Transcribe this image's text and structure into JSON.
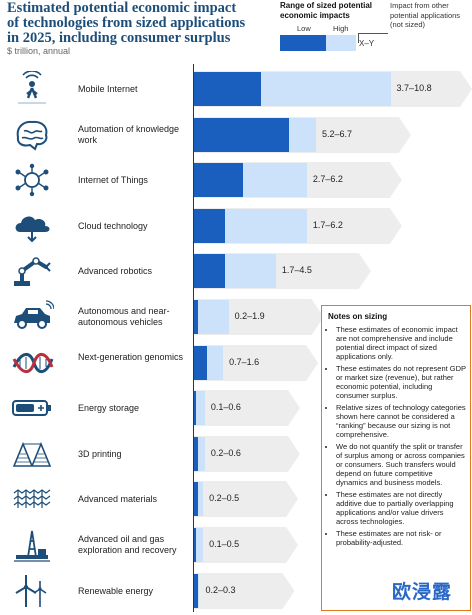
{
  "title": "Estimated potential economic impact of technologies from sized applications in 2025, including consumer surplus",
  "unit": "$ trillion, annual",
  "legend": {
    "range_title": "Range of sized potential economic impacts",
    "low": "Low",
    "high": "High",
    "xy": "X–Y",
    "other": "Impact from other potential applications (not sized)"
  },
  "colors": {
    "low": "#1a5fbd",
    "high": "#cce2fa",
    "chevron": "#ededed",
    "icon": "#1d4e7a",
    "notes_border": "#e07b1f"
  },
  "chart_data": {
    "type": "bar",
    "stacked_range": true,
    "categories": [
      "Mobile Internet",
      "Automation of knowledge work",
      "Internet of Things",
      "Cloud technology",
      "Advanced robotics",
      "Autonomous and near-autonomous vehicles",
      "Next-generation genomics",
      "Energy storage",
      "3D printing",
      "Advanced materials",
      "Advanced oil and gas exploration and recovery",
      "Renewable energy"
    ],
    "low": [
      3.7,
      5.2,
      2.7,
      1.7,
      1.7,
      0.2,
      0.7,
      0.1,
      0.2,
      0.2,
      0.1,
      0.2
    ],
    "high": [
      10.8,
      6.7,
      6.2,
      6.2,
      4.5,
      1.9,
      1.6,
      0.6,
      0.6,
      0.5,
      0.5,
      0.3
    ],
    "range_labels": [
      "3.7–10.8",
      "5.2–6.7",
      "2.7–6.2",
      "1.7–6.2",
      "1.7–4.5",
      "0.2–1.9",
      "0.7–1.6",
      "0.1–0.6",
      "0.2–0.6",
      "0.2–0.5",
      "0.1–0.5",
      "0.2–0.3"
    ],
    "icons": [
      "person-signal-icon",
      "brain-icon",
      "network-icon",
      "cloud-icon",
      "robot-arm-icon",
      "car-icon",
      "dna-icon",
      "battery-icon",
      "printer-3d-icon",
      "materials-icon",
      "oil-rig-icon",
      "wind-turbine-icon"
    ]
  },
  "notes": {
    "title": "Notes on sizing",
    "items": [
      "These estimates of economic impact are not comprehensive and include potential direct impact of sized applications only.",
      "These estimates do not represent GDP or market size (revenue), but rather economic potential, including consumer surplus.",
      "Relative sizes of technology categories shown here cannot be considered a “ranking” because our sizing is not comprehensive.",
      "We do not quantify the split or transfer of surplus among or across companies or consumers. Such transfers would depend on future competitive dynamics and business models.",
      "These estimates are not directly additive due to partially overlapping applications and/or value drivers across technologies.",
      "These estimates are not risk- or probability-adjusted."
    ]
  },
  "watermark": "欧浸露"
}
